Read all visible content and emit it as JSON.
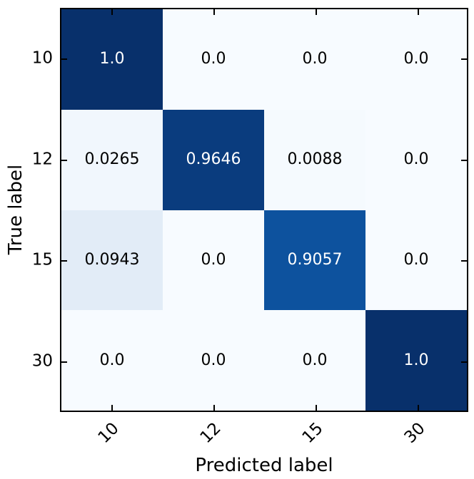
{
  "figure": {
    "background": "#ffffff",
    "axis_color": "#000000"
  },
  "chart_data": {
    "type": "heatmap",
    "title": "",
    "xlabel": "Predicted label",
    "ylabel": "True label",
    "colormap": "Blues",
    "value_range": [
      0,
      1
    ],
    "x_tick_labels": [
      "10",
      "12",
      "15",
      "30"
    ],
    "y_tick_labels": [
      "10",
      "12",
      "15",
      "30"
    ],
    "x_tick_rotation_deg": 45,
    "grid": false,
    "legend": "none",
    "matrix": [
      [
        1.0,
        0.0,
        0.0,
        0.0
      ],
      [
        0.0265,
        0.9646,
        0.0088,
        0.0
      ],
      [
        0.0943,
        0.0,
        0.9057,
        0.0
      ],
      [
        0.0,
        0.0,
        0.0,
        1.0
      ]
    ],
    "cell_labels": [
      [
        "1.0",
        "0.0",
        "0.0",
        "0.0"
      ],
      [
        "0.0265",
        "0.9646",
        "0.0088",
        "0.0"
      ],
      [
        "0.0943",
        "0.0",
        "0.9057",
        "0.0"
      ],
      [
        "0.0",
        "0.0",
        "0.0",
        "1.0"
      ]
    ],
    "cell_colors": [
      [
        "#08306b",
        "#f7fbff",
        "#f7fbff",
        "#f7fbff"
      ],
      [
        "#f1f7fd",
        "#0a3c7e",
        "#f5fafe",
        "#f7fbff"
      ],
      [
        "#e2ecf7",
        "#f7fbff",
        "#0d529e",
        "#f7fbff"
      ],
      [
        "#f7fbff",
        "#f7fbff",
        "#f7fbff",
        "#08306b"
      ]
    ],
    "cell_text_colors": [
      [
        "#ffffff",
        "#000000",
        "#000000",
        "#000000"
      ],
      [
        "#000000",
        "#ffffff",
        "#000000",
        "#000000"
      ],
      [
        "#000000",
        "#000000",
        "#ffffff",
        "#000000"
      ],
      [
        "#000000",
        "#000000",
        "#000000",
        "#ffffff"
      ]
    ]
  }
}
